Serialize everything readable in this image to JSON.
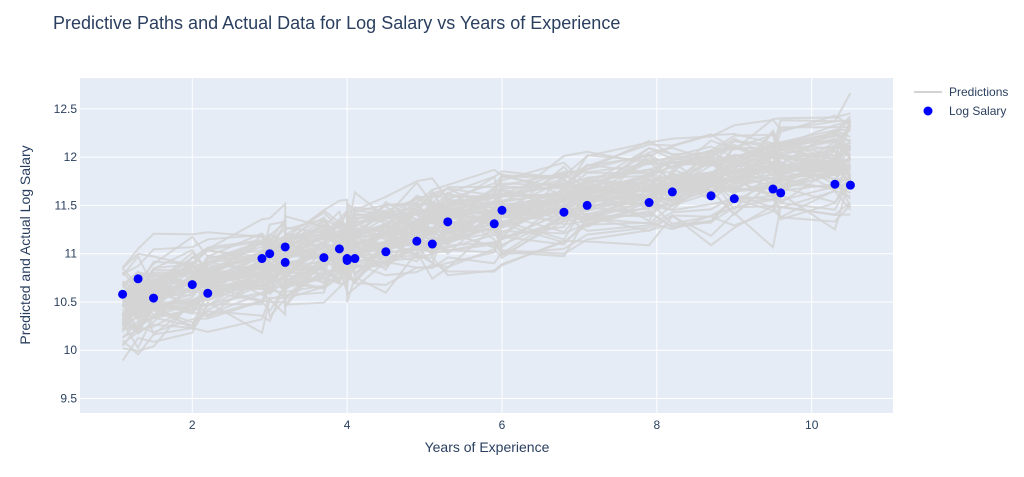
{
  "chart_data": {
    "type": "line",
    "title": "Predictive Paths and Actual Data for Log Salary vs Years of Experience",
    "xlabel": "Years of Experience",
    "ylabel": "Predicted and Actual Log Salary",
    "xlim": [
      0.55,
      11.05
    ],
    "ylim": [
      9.35,
      12.82
    ],
    "x_ticks": [
      2,
      4,
      6,
      8,
      10
    ],
    "x_tick_labels": [
      "2",
      "4",
      "6",
      "8",
      "10"
    ],
    "y_ticks": [
      9.5,
      10,
      10.5,
      11,
      11.5,
      12,
      12.5
    ],
    "y_tick_labels": [
      "9.5",
      "10",
      "10.5",
      "11",
      "11.5",
      "12",
      "12.5"
    ],
    "grid": true,
    "legend_position": "top-right",
    "plot_background": "#e5ecf6",
    "series": [
      {
        "name": "Predictions",
        "mode": "lines",
        "color": "#d3d3d3",
        "x": [
          1.1,
          1.3,
          1.5,
          2.0,
          2.2,
          2.9,
          3.0,
          3.2,
          3.2,
          3.7,
          3.9,
          4.0,
          4.0,
          4.1,
          4.5,
          4.9,
          5.1,
          5.3,
          5.9,
          6.0,
          6.8,
          7.1,
          7.9,
          8.2,
          8.7,
          9.0,
          9.5,
          9.6,
          10.3,
          10.5
        ],
        "mean": [
          10.42,
          10.48,
          10.53,
          10.63,
          10.68,
          10.82,
          10.85,
          10.89,
          10.89,
          10.99,
          11.03,
          11.05,
          11.05,
          11.07,
          11.14,
          11.21,
          11.24,
          11.27,
          11.37,
          11.39,
          11.52,
          11.56,
          11.67,
          11.71,
          11.77,
          11.8,
          11.85,
          11.86,
          11.93,
          11.95
        ],
        "path_count": 80,
        "spread": 0.32
      },
      {
        "name": "Log Salary",
        "mode": "markers",
        "color": "#0000ff",
        "x": [
          1.1,
          1.3,
          1.5,
          2.0,
          2.2,
          2.9,
          3.0,
          3.2,
          3.2,
          3.7,
          3.9,
          4.0,
          4.0,
          4.1,
          4.5,
          4.9,
          5.1,
          5.3,
          5.9,
          6.0,
          6.8,
          7.1,
          7.9,
          8.2,
          8.7,
          9.0,
          9.5,
          9.6,
          10.3,
          10.5
        ],
        "y": [
          10.58,
          10.74,
          10.54,
          10.68,
          10.59,
          10.95,
          11.0,
          10.91,
          11.07,
          10.96,
          11.05,
          10.95,
          10.93,
          10.95,
          11.02,
          11.13,
          11.1,
          11.33,
          11.31,
          11.45,
          11.43,
          11.5,
          11.53,
          11.64,
          11.6,
          11.57,
          11.67,
          11.63,
          11.72,
          11.71
        ]
      }
    ]
  }
}
